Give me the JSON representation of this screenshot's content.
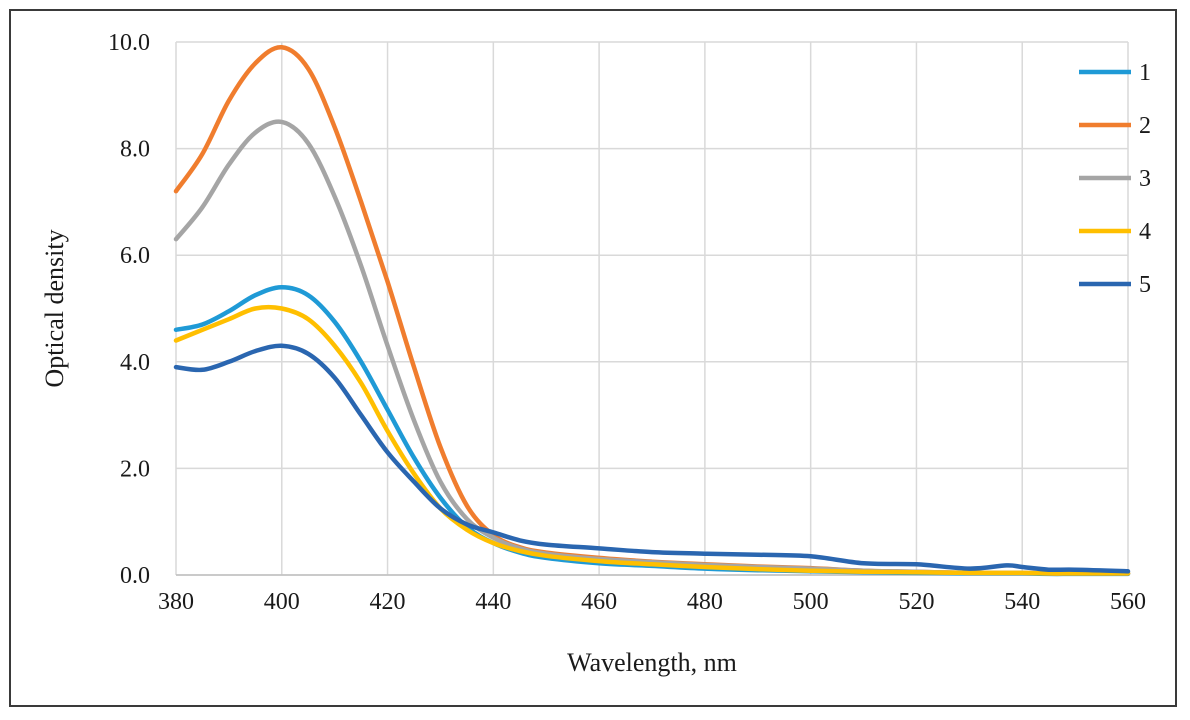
{
  "chart_data": {
    "type": "line",
    "title": "",
    "xlabel": "Wavelength, nm",
    "ylabel": "Optical density",
    "xlim": [
      380,
      560
    ],
    "ylim": [
      0,
      10
    ],
    "xticks": [
      380,
      400,
      420,
      440,
      460,
      480,
      500,
      520,
      540,
      560
    ],
    "xtick_labels": [
      "380",
      "400",
      "420",
      "440",
      "460",
      "480",
      "500",
      "520",
      "540",
      "560"
    ],
    "yticks": [
      0,
      2,
      4,
      6,
      8,
      10
    ],
    "ytick_labels": [
      "0.0",
      "2.0",
      "4.0",
      "6.0",
      "8.0",
      "10.0"
    ],
    "grid": true,
    "legend_position": "top-right",
    "x": [
      380,
      385,
      390,
      395,
      400,
      405,
      410,
      415,
      420,
      425,
      430,
      435,
      440,
      445,
      450,
      460,
      470,
      480,
      490,
      500,
      510,
      520,
      530,
      537,
      540,
      545,
      550,
      560
    ],
    "series": [
      {
        "name": "1",
        "color": "#1f9ad6",
        "values": [
          4.6,
          4.7,
          4.95,
          5.25,
          5.4,
          5.25,
          4.75,
          4.0,
          3.1,
          2.2,
          1.45,
          0.9,
          0.6,
          0.42,
          0.32,
          0.22,
          0.17,
          0.12,
          0.09,
          0.07,
          0.05,
          0.04,
          0.03,
          0.03,
          0.03,
          0.02,
          0.02,
          0.02
        ]
      },
      {
        "name": "2",
        "color": "#f07d2e",
        "values": [
          7.2,
          7.9,
          8.9,
          9.6,
          9.9,
          9.5,
          8.4,
          7.0,
          5.5,
          3.9,
          2.4,
          1.3,
          0.75,
          0.52,
          0.42,
          0.32,
          0.25,
          0.2,
          0.16,
          0.13,
          0.08,
          0.06,
          0.04,
          0.04,
          0.04,
          0.03,
          0.03,
          0.03
        ]
      },
      {
        "name": "3",
        "color": "#a5a5a5",
        "values": [
          6.3,
          6.9,
          7.7,
          8.3,
          8.5,
          8.1,
          7.1,
          5.8,
          4.3,
          2.9,
          1.75,
          1.05,
          0.7,
          0.5,
          0.4,
          0.3,
          0.24,
          0.19,
          0.15,
          0.12,
          0.08,
          0.06,
          0.04,
          0.04,
          0.04,
          0.03,
          0.03,
          0.03
        ]
      },
      {
        "name": "4",
        "color": "#ffbf00",
        "values": [
          4.4,
          4.6,
          4.8,
          5.0,
          5.0,
          4.8,
          4.3,
          3.6,
          2.7,
          1.9,
          1.25,
          0.85,
          0.6,
          0.45,
          0.36,
          0.26,
          0.2,
          0.15,
          0.11,
          0.08,
          0.06,
          0.05,
          0.04,
          0.04,
          0.04,
          0.03,
          0.03,
          0.03
        ]
      },
      {
        "name": "5",
        "color": "#2a66b0",
        "values": [
          3.9,
          3.85,
          4.0,
          4.2,
          4.3,
          4.15,
          3.7,
          3.0,
          2.3,
          1.75,
          1.25,
          0.95,
          0.8,
          0.65,
          0.57,
          0.5,
          0.43,
          0.4,
          0.38,
          0.35,
          0.22,
          0.2,
          0.12,
          0.18,
          0.15,
          0.1,
          0.1,
          0.07
        ]
      }
    ]
  }
}
